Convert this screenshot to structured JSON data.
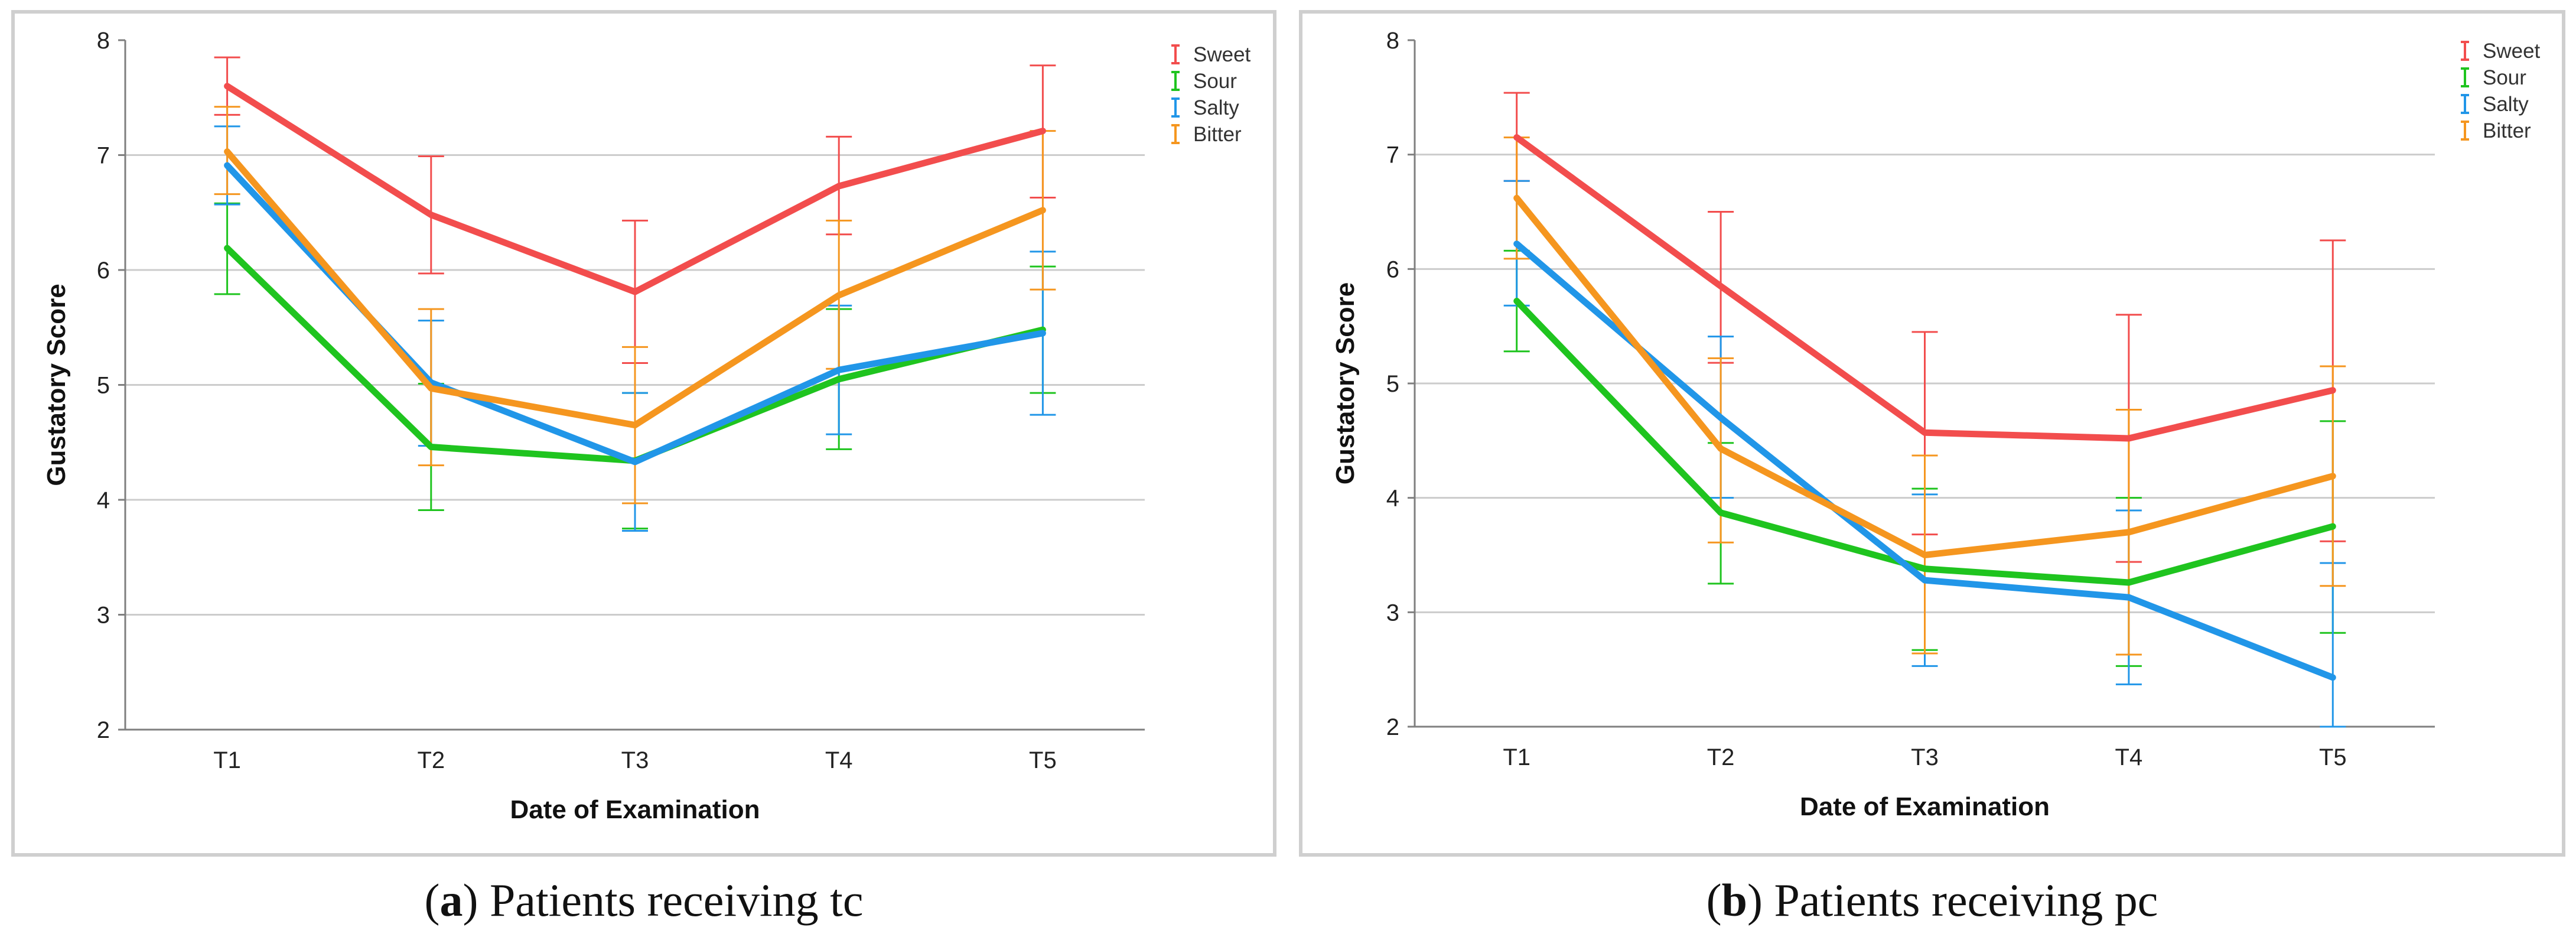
{
  "colors": {
    "Sweet": "#f24d4d",
    "Sour": "#1fc41f",
    "Salty": "#2196e8",
    "Bitter": "#f5961f"
  },
  "chart_data": [
    {
      "type": "line",
      "panel": "a",
      "caption_letter": "a",
      "caption_text": "Patients receiving tc",
      "xlabel": "Date of Examination",
      "ylabel": "Gustatory Score",
      "ylim": [
        2,
        8
      ],
      "yticks": [
        2,
        3,
        4,
        5,
        6,
        7,
        8
      ],
      "categories": [
        "T1",
        "T2",
        "T3",
        "T4",
        "T5"
      ],
      "grid": true,
      "legend_position": "top-right",
      "error_bars": true,
      "series": [
        {
          "name": "Sweet",
          "values": [
            7.6,
            6.48,
            5.81,
            6.73,
            7.21
          ],
          "lower": [
            7.35,
            5.97,
            5.19,
            6.31,
            6.63
          ],
          "upper": [
            7.85,
            6.99,
            6.43,
            7.16,
            7.78
          ]
        },
        {
          "name": "Sour",
          "values": [
            6.19,
            4.46,
            4.34,
            5.05,
            5.48
          ],
          "lower": [
            5.79,
            3.91,
            3.75,
            4.44,
            4.93
          ],
          "upper": [
            6.58,
            5.01,
            4.93,
            5.66,
            6.03
          ]
        },
        {
          "name": "Salty",
          "values": [
            6.91,
            5.02,
            4.33,
            5.13,
            5.45
          ],
          "lower": [
            6.57,
            4.47,
            3.73,
            4.57,
            4.74
          ],
          "upper": [
            7.25,
            5.56,
            4.93,
            5.69,
            6.16
          ]
        },
        {
          "name": "Bitter",
          "values": [
            7.03,
            4.97,
            4.65,
            5.78,
            6.52
          ],
          "lower": [
            6.66,
            4.3,
            3.97,
            5.14,
            5.83
          ],
          "upper": [
            7.42,
            5.66,
            5.33,
            6.43,
            7.21
          ]
        }
      ]
    },
    {
      "type": "line",
      "panel": "b",
      "caption_letter": "b",
      "caption_text": "Patients receiving pc",
      "xlabel": "Date of Examination",
      "ylabel": "Gustatory Score",
      "ylim": [
        2,
        8
      ],
      "yticks": [
        2,
        3,
        4,
        5,
        6,
        7,
        8
      ],
      "categories": [
        "T1",
        "T2",
        "T3",
        "T4",
        "T5"
      ],
      "grid": true,
      "legend_position": "top-right",
      "error_bars": true,
      "series": [
        {
          "name": "Sweet",
          "values": [
            7.15,
            5.85,
            4.57,
            4.52,
            4.94
          ],
          "lower": [
            6.77,
            5.18,
            3.68,
            3.44,
            3.62
          ],
          "upper": [
            7.54,
            6.5,
            5.45,
            5.6,
            6.25
          ]
        },
        {
          "name": "Sour",
          "values": [
            5.72,
            3.87,
            3.38,
            3.26,
            3.75
          ],
          "lower": [
            5.28,
            3.25,
            2.67,
            2.53,
            2.82
          ],
          "upper": [
            6.16,
            4.48,
            4.08,
            4.0,
            4.67
          ]
        },
        {
          "name": "Salty",
          "values": [
            6.22,
            4.7,
            3.28,
            3.13,
            2.43
          ],
          "lower": [
            5.68,
            4.0,
            2.53,
            2.37,
            2.0
          ],
          "upper": [
            6.77,
            5.41,
            4.03,
            3.89,
            3.43
          ]
        },
        {
          "name": "Bitter",
          "values": [
            6.62,
            4.43,
            3.5,
            3.7,
            4.19
          ],
          "lower": [
            6.09,
            3.61,
            2.64,
            2.63,
            3.23
          ],
          "upper": [
            7.15,
            5.22,
            4.37,
            4.77,
            5.15
          ]
        }
      ]
    }
  ]
}
